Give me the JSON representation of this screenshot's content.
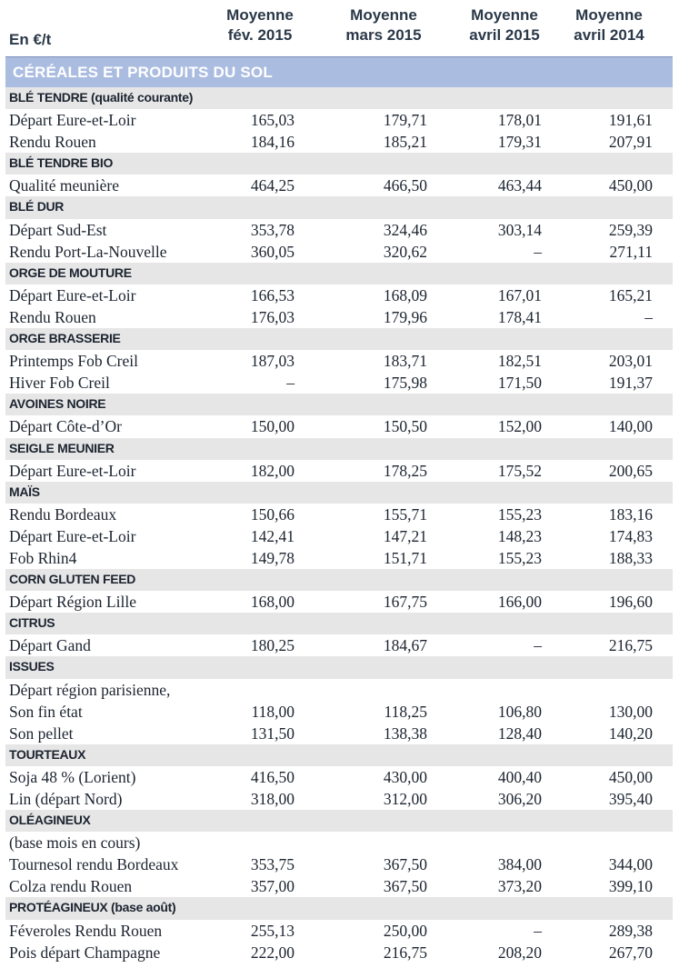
{
  "header": {
    "unit": "En €/t",
    "columns": [
      {
        "line1": "Moyenne",
        "line2": "fév. 2015"
      },
      {
        "line1": "Moyenne",
        "line2": "mars 2015"
      },
      {
        "line1": "Moyenne",
        "line2": "avril 2015"
      },
      {
        "line1": "Moyenne",
        "line2": "avril 2014"
      }
    ]
  },
  "section_title": "CÉRÉALES ET PRODUITS DU SOL",
  "rows": [
    {
      "type": "cat",
      "label": "BLÉ TENDRE (qualité courante)"
    },
    {
      "type": "item",
      "label": "Départ Eure-et-Loir",
      "values": [
        "165,03",
        "179,71",
        "178,01",
        "191,61"
      ]
    },
    {
      "type": "item",
      "label": "Rendu Rouen",
      "values": [
        "184,16",
        "185,21",
        "179,31",
        "207,91"
      ]
    },
    {
      "type": "cat",
      "label": "BLÉ TENDRE BIO"
    },
    {
      "type": "item",
      "label": "Qualité meunière",
      "values": [
        "464,25",
        "466,50",
        "463,44",
        "450,00"
      ]
    },
    {
      "type": "cat",
      "label": "BLÉ DUR"
    },
    {
      "type": "item",
      "label": "Départ Sud-Est",
      "values": [
        "353,78",
        "324,46",
        "303,14",
        "259,39"
      ]
    },
    {
      "type": "item",
      "label": "Rendu Port-La-Nouvelle",
      "values": [
        "360,05",
        "320,62",
        "–",
        "271,11"
      ]
    },
    {
      "type": "cat",
      "label": "ORGE DE MOUTURE"
    },
    {
      "type": "item",
      "label": "Départ Eure-et-Loir",
      "values": [
        "166,53",
        "168,09",
        "167,01",
        "165,21"
      ]
    },
    {
      "type": "item",
      "label": "Rendu Rouen",
      "values": [
        "176,03",
        "179,96",
        "178,41",
        "–"
      ]
    },
    {
      "type": "cat",
      "label": "ORGE BRASSERIE"
    },
    {
      "type": "item",
      "label": "Printemps Fob Creil",
      "values": [
        "187,03",
        "183,71",
        "182,51",
        "203,01"
      ]
    },
    {
      "type": "item",
      "label": "Hiver Fob Creil",
      "values": [
        "–",
        "175,98",
        "171,50",
        "191,37"
      ]
    },
    {
      "type": "cat",
      "label": "AVOINES NOIRE"
    },
    {
      "type": "item",
      "label": "Départ Côte-d’Or",
      "values": [
        "150,00",
        "150,50",
        "152,00",
        "140,00"
      ]
    },
    {
      "type": "cat",
      "label": "SEIGLE MEUNIER"
    },
    {
      "type": "item",
      "label": "Départ Eure-et-Loir",
      "values": [
        "182,00",
        "178,25",
        "175,52",
        "200,65"
      ]
    },
    {
      "type": "cat",
      "label": "MAÏS"
    },
    {
      "type": "item",
      "label": "Rendu Bordeaux",
      "values": [
        "150,66",
        "155,71",
        "155,23",
        "183,16"
      ]
    },
    {
      "type": "item",
      "label": "Départ Eure-et-Loir",
      "values": [
        "142,41",
        "147,21",
        "148,23",
        "174,83"
      ]
    },
    {
      "type": "item",
      "label": "Fob Rhin4",
      "values": [
        "149,78",
        "151,71",
        "155,23",
        "188,33"
      ]
    },
    {
      "type": "cat",
      "label": "CORN GLUTEN FEED"
    },
    {
      "type": "item",
      "label": "Départ Région Lille",
      "values": [
        "168,00",
        "167,75",
        "166,00",
        "196,60"
      ]
    },
    {
      "type": "cat",
      "label": "CITRUS"
    },
    {
      "type": "item",
      "label": "Départ Gand",
      "values": [
        "180,25",
        "184,67",
        "–",
        "216,75"
      ]
    },
    {
      "type": "cat",
      "label": "ISSUES"
    },
    {
      "type": "item",
      "label": "Départ région parisienne,",
      "values": [
        "",
        "",
        "",
        ""
      ]
    },
    {
      "type": "item",
      "label": "Son fin état",
      "values": [
        "118,00",
        "118,25",
        "106,80",
        "130,00"
      ]
    },
    {
      "type": "item",
      "label": "Son pellet",
      "values": [
        "131,50",
        "138,38",
        "128,40",
        "140,20"
      ]
    },
    {
      "type": "cat",
      "label": "TOURTEAUX"
    },
    {
      "type": "item",
      "label": "Soja 48 % (Lorient)",
      "values": [
        "416,50",
        "430,00",
        "400,40",
        "450,00"
      ]
    },
    {
      "type": "item",
      "label": "Lin (départ Nord)",
      "values": [
        "318,00",
        "312,00",
        "306,20",
        "395,40"
      ]
    },
    {
      "type": "cat",
      "label": "OLÉAGINEUX"
    },
    {
      "type": "item",
      "label": "(base mois en cours)",
      "values": [
        "",
        "",
        "",
        ""
      ]
    },
    {
      "type": "item",
      "label": "Tournesol rendu Bordeaux",
      "values": [
        "353,75",
        "367,50",
        "384,00",
        "344,00"
      ]
    },
    {
      "type": "item",
      "label": "Colza rendu Rouen",
      "values": [
        "357,00",
        "367,50",
        "373,20",
        "399,10"
      ]
    },
    {
      "type": "cat",
      "label": "PROTÉAGINEUX (base août)"
    },
    {
      "type": "item",
      "label": "Féveroles Rendu Rouen",
      "values": [
        "255,13",
        "250,00",
        "–",
        "289,38"
      ]
    },
    {
      "type": "item",
      "label": "Pois départ Champagne",
      "values": [
        "222,00",
        "216,75",
        "208,20",
        "267,70"
      ]
    }
  ]
}
